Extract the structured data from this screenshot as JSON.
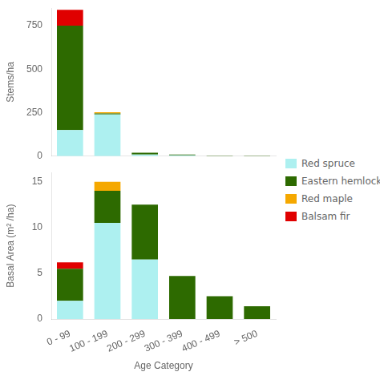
{
  "chart_data": [
    {
      "type": "bar",
      "stacked": true,
      "categories": [
        "0 - 99",
        "100 - 199",
        "200 - 299",
        "300 - 399",
        "400 - 499",
        "> 500"
      ],
      "series": [
        {
          "name": "Red spruce",
          "color": "#adf0f0",
          "values": [
            150,
            240,
            10,
            5,
            0,
            0
          ]
        },
        {
          "name": "Eastern hemlock",
          "color": "#2d6a00",
          "values": [
            600,
            5,
            10,
            5,
            3,
            3
          ]
        },
        {
          "name": "Red maple",
          "color": "#f5a800",
          "values": [
            0,
            7,
            0,
            0,
            0,
            0
          ]
        },
        {
          "name": "Balsam fir",
          "color": "#e00000",
          "values": [
            90,
            0,
            0,
            0,
            0,
            0
          ]
        }
      ],
      "ylabel": "Stems/ha",
      "ylim": [
        0,
        850
      ],
      "yticks": [
        0,
        250,
        500,
        750
      ],
      "grid": false,
      "legend": "right",
      "tick_labels": "y"
    },
    {
      "type": "bar",
      "stacked": true,
      "categories": [
        "0 - 99",
        "100 - 199",
        "200 - 299",
        "300 - 399",
        "400 - 499",
        "> 500"
      ],
      "series": [
        {
          "name": "Red spruce",
          "color": "#adf0f0",
          "values": [
            2.0,
            10.5,
            6.5,
            0.0,
            0.0,
            0.0
          ]
        },
        {
          "name": "Eastern hemlock",
          "color": "#2d6a00",
          "values": [
            3.5,
            3.5,
            6.0,
            4.7,
            2.5,
            1.4
          ]
        },
        {
          "name": "Red maple",
          "color": "#f5a800",
          "values": [
            0.0,
            1.0,
            0.0,
            0.0,
            0.0,
            0.0
          ]
        },
        {
          "name": "Balsam fir",
          "color": "#e00000",
          "values": [
            0.7,
            0.0,
            0.0,
            0.0,
            0.0,
            0.0
          ]
        }
      ],
      "xlabel": "Age Category",
      "ylabel": "Basal Area (m² /ha)",
      "ylim": [
        0,
        16
      ],
      "yticks": [
        0,
        5,
        10,
        15
      ],
      "grid": false
    }
  ]
}
